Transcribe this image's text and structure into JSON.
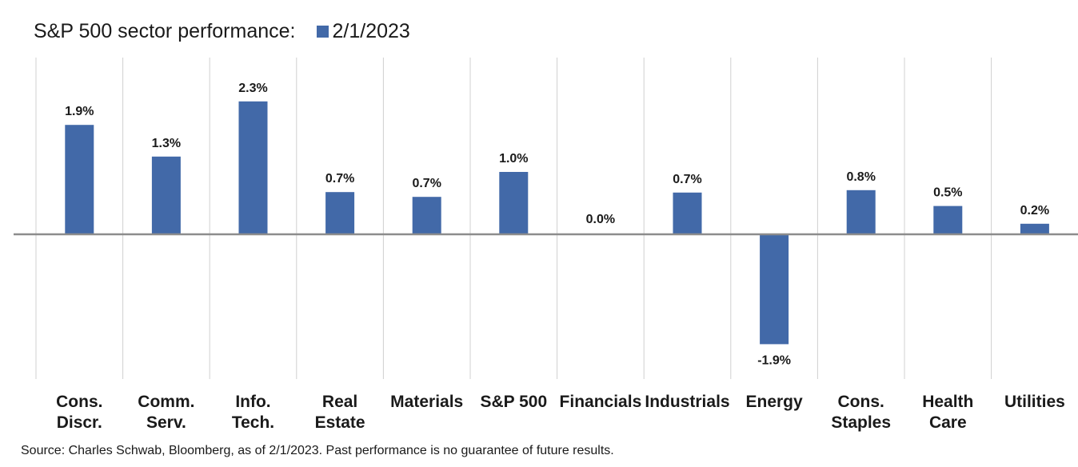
{
  "chart_data": {
    "type": "bar",
    "title": "S&P 500 sector performance:",
    "legend": "2/1/2023",
    "categories": [
      [
        "Cons.",
        "Discr."
      ],
      [
        "Comm.",
        "Serv."
      ],
      [
        "Info.",
        "Tech."
      ],
      [
        "Real",
        "Estate"
      ],
      [
        "Materials"
      ],
      [
        "S&P 500"
      ],
      [
        "Financials"
      ],
      [
        "Industrials"
      ],
      [
        "Energy"
      ],
      [
        "Cons.",
        "Staples"
      ],
      [
        "Health",
        "Care"
      ],
      [
        "Utilities"
      ]
    ],
    "values": [
      1.9,
      1.3,
      2.3,
      0.7,
      0.7,
      1.0,
      0.0,
      0.7,
      -1.9,
      0.8,
      0.5,
      0.2
    ],
    "bar_scale": [
      2.28,
      1.62,
      2.77,
      0.88,
      0.78,
      1.3,
      0.0,
      0.87,
      -2.29,
      0.92,
      0.59,
      0.22
    ],
    "labels": [
      "1.9%",
      "1.3%",
      "2.3%",
      "0.7%",
      "0.7%",
      "1.0%",
      "0.0%",
      "0.7%",
      "-1.9%",
      "0.8%",
      "0.5%",
      "0.2%"
    ],
    "ylim": [
      -3.0,
      3.65
    ],
    "grid": "vertical",
    "xlabel": "",
    "ylabel": "",
    "colors": {
      "bar": "#4269A8",
      "axis": "#8c8c8c",
      "grid": "#d0d0d0"
    }
  },
  "source": "Source: Charles Schwab, Bloomberg, as of 2/1/2023.  Past performance is no guarantee of future results."
}
